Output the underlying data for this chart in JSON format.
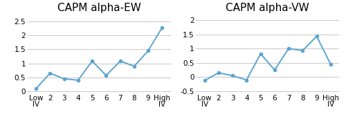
{
  "ew_title": "CAPM alpha-EW",
  "vw_title": "CAPM alpha-VW",
  "x_labels": [
    "Low\nIV",
    "2",
    "3",
    "4",
    "5",
    "6",
    "7",
    "8",
    "9",
    "High\nIV"
  ],
  "ew_values": [
    0.1,
    0.65,
    0.45,
    0.4,
    1.08,
    0.57,
    1.08,
    0.9,
    1.45,
    2.28
  ],
  "vw_values": [
    -0.12,
    0.15,
    0.05,
    -0.1,
    0.82,
    0.25,
    1.0,
    0.93,
    1.43,
    0.45
  ],
  "ew_ylim": [
    -0.05,
    2.75
  ],
  "vw_ylim": [
    -0.55,
    2.2
  ],
  "ew_yticks": [
    0,
    0.5,
    1.0,
    1.5,
    2.0,
    2.5
  ],
  "vw_yticks": [
    -0.5,
    0,
    0.5,
    1.0,
    1.5,
    2.0
  ],
  "ew_ytick_labels": [
    "0",
    "0.5",
    "1",
    "1.5",
    "2",
    "2.5"
  ],
  "vw_ytick_labels": [
    "-0.5",
    "0",
    "0.5",
    "1",
    "1.5",
    "2"
  ],
  "line_color": "#5BA4CF",
  "marker": "o",
  "marker_size": 3,
  "line_width": 1.4,
  "title_fontsize": 11,
  "tick_fontsize": 7.5,
  "background_color": "#ffffff",
  "grid_color": "#cccccc",
  "grid_linewidth": 0.8
}
